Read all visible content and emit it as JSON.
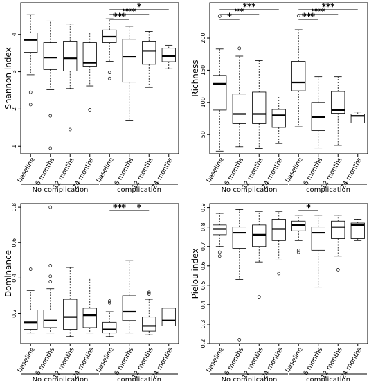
{
  "chart_data": [
    {
      "type": "box",
      "ylabel": "Shannon index",
      "ylim": [
        0.8,
        4.85
      ],
      "yticks": [
        1,
        2,
        3,
        4
      ],
      "categories": [
        "baseline",
        "6 months",
        "12 months",
        "24 months",
        "baseline",
        "6 months",
        "12 months",
        "24 months"
      ],
      "groups": [
        {
          "label": "No complication",
          "start": 0,
          "end": 3
        },
        {
          "label": "complication",
          "start": 4,
          "end": 7
        }
      ],
      "boxes": [
        {
          "low": 2.92,
          "q1": 3.52,
          "median": 3.85,
          "q3": 4.04,
          "high": 4.53,
          "outliers": [
            2.45,
            2.12
          ]
        },
        {
          "low": 2.52,
          "q1": 3.06,
          "median": 3.38,
          "q3": 3.78,
          "high": 4.36,
          "outliers": [
            1.82,
            0.95
          ]
        },
        {
          "low": 2.55,
          "q1": 3.02,
          "median": 3.36,
          "q3": 3.82,
          "high": 4.28,
          "outliers": [
            1.45
          ]
        },
        {
          "low": 2.62,
          "q1": 3.15,
          "median": 3.24,
          "q3": 3.78,
          "high": 4.04,
          "outliers": [
            1.98
          ]
        },
        {
          "low": 3.28,
          "q1": 3.78,
          "median": 3.94,
          "q3": 4.12,
          "high": 4.42,
          "outliers": [
            2.98,
            2.82
          ]
        },
        {
          "low": 1.7,
          "q1": 2.72,
          "median": 3.4,
          "q3": 3.87,
          "high": 4.22,
          "outliers": []
        },
        {
          "low": 2.58,
          "q1": 3.2,
          "median": 3.56,
          "q3": 3.82,
          "high": 4.08,
          "outliers": []
        },
        {
          "low": 3.08,
          "q1": 3.27,
          "median": 3.42,
          "q3": 3.63,
          "high": 3.71,
          "outliers": []
        }
      ],
      "significance": [
        {
          "from": 4,
          "to": 7,
          "label": "*"
        },
        {
          "from": 4,
          "to": 6,
          "label": "***"
        },
        {
          "from": 4,
          "to": 5,
          "label": "***"
        }
      ]
    },
    {
      "type": "box",
      "ylabel": "Richness",
      "ylim": [
        20,
        255
      ],
      "yticks": [
        50,
        100,
        150,
        200
      ],
      "categories": [
        "baseline",
        "6 months",
        "12 months",
        "24 months",
        "baseline",
        "6 months",
        "12 months",
        "24 months"
      ],
      "groups": [
        {
          "label": "No complication",
          "start": 0,
          "end": 3
        },
        {
          "label": "complication",
          "start": 4,
          "end": 7
        }
      ],
      "boxes": [
        {
          "low": 24,
          "q1": 88,
          "median": 129,
          "q3": 142,
          "high": 183,
          "outliers": [
            234
          ]
        },
        {
          "low": 31,
          "q1": 67,
          "median": 82,
          "q3": 113,
          "high": 172,
          "outliers": [
            184
          ]
        },
        {
          "low": 28,
          "q1": 67,
          "median": 82,
          "q3": 116,
          "high": 165,
          "outliers": []
        },
        {
          "low": 36,
          "q1": 61,
          "median": 80,
          "q3": 89,
          "high": 110,
          "outliers": []
        },
        {
          "low": 62,
          "q1": 118,
          "median": 131,
          "q3": 164,
          "high": 213,
          "outliers": [
            235
          ]
        },
        {
          "low": 29,
          "q1": 56,
          "median": 77,
          "q3": 100,
          "high": 140,
          "outliers": []
        },
        {
          "low": 33,
          "q1": 83,
          "median": 88,
          "q3": 117,
          "high": 140,
          "outliers": []
        },
        {
          "low": 68,
          "q1": 68,
          "median": 79,
          "q3": 82,
          "high": 85,
          "outliers": []
        }
      ],
      "significance": [
        {
          "from": 0,
          "to": 3,
          "label": "***"
        },
        {
          "from": 0,
          "to": 2,
          "label": "**"
        },
        {
          "from": 0,
          "to": 1,
          "label": "*"
        },
        {
          "from": 4,
          "to": 7,
          "label": "***"
        },
        {
          "from": 4,
          "to": 6,
          "label": "***"
        },
        {
          "from": 4,
          "to": 5,
          "label": "***"
        }
      ]
    },
    {
      "type": "box",
      "ylabel": "Dominance",
      "ylim": [
        0.03,
        0.82
      ],
      "yticks": [
        0.2,
        0.4,
        0.6,
        0.8
      ],
      "categories": [
        "baseline",
        "6 months",
        "12 months",
        "24 months",
        "baseline",
        "6 months",
        "12 months",
        "24 months"
      ],
      "groups": [
        {
          "label": "No complication",
          "start": 0,
          "end": 3
        },
        {
          "label": "complication",
          "start": 4,
          "end": 7
        }
      ],
      "boxes": [
        {
          "low": 0.09,
          "q1": 0.11,
          "median": 0.15,
          "q3": 0.22,
          "high": 0.33,
          "outliers": [
            0.45
          ]
        },
        {
          "low": 0.09,
          "q1": 0.12,
          "median": 0.16,
          "q3": 0.22,
          "high": 0.34,
          "outliers": [
            0.47,
            0.41,
            0.38,
            0.8
          ]
        },
        {
          "low": 0.07,
          "q1": 0.11,
          "median": 0.18,
          "q3": 0.28,
          "high": 0.46,
          "outliers": []
        },
        {
          "low": 0.09,
          "q1": 0.12,
          "median": 0.19,
          "q3": 0.23,
          "high": 0.4,
          "outliers": []
        },
        {
          "low": 0.07,
          "q1": 0.09,
          "median": 0.11,
          "q3": 0.15,
          "high": 0.21,
          "outliers": [
            0.27,
            0.26
          ]
        },
        {
          "low": 0.09,
          "q1": 0.16,
          "median": 0.21,
          "q3": 0.3,
          "high": 0.5,
          "outliers": []
        },
        {
          "low": 0.08,
          "q1": 0.1,
          "median": 0.13,
          "q3": 0.18,
          "high": 0.28,
          "outliers": [
            0.31,
            0.32
          ]
        },
        {
          "low": 0.13,
          "q1": 0.13,
          "median": 0.16,
          "q3": 0.23,
          "high": 0.23,
          "outliers": []
        }
      ],
      "significance": [
        {
          "from": 4,
          "to": 5,
          "label": "***"
        },
        {
          "from": 5,
          "to": 6,
          "label": "*"
        }
      ]
    },
    {
      "type": "box",
      "ylabel": "Pielou index",
      "ylim": [
        0.2,
        0.92
      ],
      "yticks": [
        0.2,
        0.3,
        0.4,
        0.5,
        0.6,
        0.7,
        0.8,
        0.9
      ],
      "categories": [
        "baseline",
        "6 months",
        "12 months",
        "24 months",
        "baseline",
        "6 months",
        "12 months",
        "24 months"
      ],
      "groups": [
        {
          "label": "No complication",
          "start": 0,
          "end": 3
        },
        {
          "label": "complication",
          "start": 4,
          "end": 7
        }
      ],
      "boxes": [
        {
          "low": 0.7,
          "q1": 0.76,
          "median": 0.79,
          "q3": 0.81,
          "high": 0.87,
          "outliers": [
            0.67,
            0.65
          ]
        },
        {
          "low": 0.53,
          "q1": 0.69,
          "median": 0.77,
          "q3": 0.8,
          "high": 0.89,
          "outliers": [
            0.22
          ]
        },
        {
          "low": 0.62,
          "q1": 0.7,
          "median": 0.76,
          "q3": 0.81,
          "high": 0.88,
          "outliers": [
            0.44
          ]
        },
        {
          "low": 0.63,
          "q1": 0.73,
          "median": 0.79,
          "q3": 0.84,
          "high": 0.88,
          "outliers": [
            0.56
          ]
        },
        {
          "low": 0.73,
          "q1": 0.78,
          "median": 0.81,
          "q3": 0.83,
          "high": 0.86,
          "outliers": [
            0.68,
            0.67
          ]
        },
        {
          "low": 0.49,
          "q1": 0.68,
          "median": 0.77,
          "q3": 0.8,
          "high": 0.86,
          "outliers": []
        },
        {
          "low": 0.65,
          "q1": 0.74,
          "median": 0.8,
          "q3": 0.83,
          "high": 0.86,
          "outliers": [
            0.58
          ]
        },
        {
          "low": 0.73,
          "q1": 0.74,
          "median": 0.81,
          "q3": 0.82,
          "high": 0.84,
          "outliers": []
        }
      ],
      "significance": [
        {
          "from": 4,
          "to": 5,
          "label": "*"
        }
      ]
    }
  ]
}
